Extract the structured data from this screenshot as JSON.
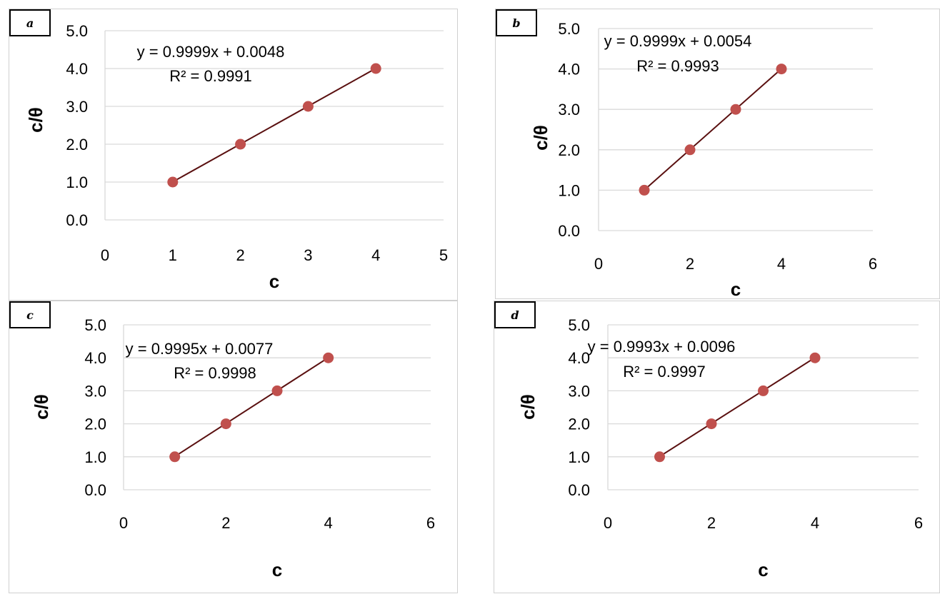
{
  "chart_data": [
    {
      "id": "a",
      "panel_label": "a",
      "type": "scatter",
      "xlabel": "c",
      "ylabel": "c/θ",
      "xlim": [
        0,
        5
      ],
      "ylim": [
        0,
        5
      ],
      "xticks": [
        "0",
        "1",
        "2",
        "3",
        "4",
        "5"
      ],
      "yticks": [
        "0.0",
        "1.0",
        "2.0",
        "3.0",
        "4.0",
        "5.0"
      ],
      "x": [
        1,
        2,
        3,
        4
      ],
      "y": [
        1,
        2,
        3,
        4
      ],
      "trendline": {
        "slope": 0.9999,
        "intercept": 0.0048
      },
      "equation": "y = 0.9999x + 0.0048",
      "r2": "R² = 0.9991",
      "grid": true
    },
    {
      "id": "b",
      "panel_label": "b",
      "type": "scatter",
      "xlabel": "c",
      "ylabel": "c/θ",
      "xlim": [
        0,
        6
      ],
      "ylim": [
        0,
        5
      ],
      "xticks": [
        "0",
        "2",
        "4",
        "6"
      ],
      "yticks": [
        "0.0",
        "1.0",
        "2.0",
        "3.0",
        "4.0",
        "5.0"
      ],
      "x": [
        1,
        2,
        3,
        4
      ],
      "y": [
        1,
        2,
        3,
        4
      ],
      "trendline": {
        "slope": 0.9999,
        "intercept": 0.0054
      },
      "equation": "y = 0.9999x + 0.0054",
      "r2": "R² = 0.9993",
      "grid": true
    },
    {
      "id": "c",
      "panel_label": "c",
      "type": "scatter",
      "xlabel": "c",
      "ylabel": "c/θ",
      "xlim": [
        0,
        6
      ],
      "ylim": [
        0,
        5
      ],
      "xticks": [
        "0",
        "2",
        "4",
        "6"
      ],
      "yticks": [
        "0.0",
        "1.0",
        "2.0",
        "3.0",
        "4.0",
        "5.0"
      ],
      "x": [
        1,
        2,
        3,
        4
      ],
      "y": [
        1,
        2,
        3,
        4
      ],
      "trendline": {
        "slope": 0.9995,
        "intercept": 0.0077
      },
      "equation": "y = 0.9995x + 0.0077",
      "r2": "R² = 0.9998",
      "grid": true
    },
    {
      "id": "d",
      "panel_label": "d",
      "type": "scatter",
      "xlabel": "c",
      "ylabel": "c/θ",
      "xlim": [
        0,
        6
      ],
      "ylim": [
        0,
        5
      ],
      "xticks": [
        "0",
        "2",
        "4",
        "6"
      ],
      "yticks": [
        "0.0",
        "1.0",
        "2.0",
        "3.0",
        "4.0",
        "5.0"
      ],
      "x": [
        1,
        2,
        3,
        4
      ],
      "y": [
        1,
        2,
        3,
        4
      ],
      "trendline": {
        "slope": 0.9993,
        "intercept": 0.0096
      },
      "equation": "y = 0.9993x + 0.0096",
      "r2": "R² = 0.9997",
      "grid": true
    }
  ],
  "colors": {
    "marker": "#c0504d",
    "trendline": "#5a1010",
    "gridline": "#d9d9d9"
  }
}
